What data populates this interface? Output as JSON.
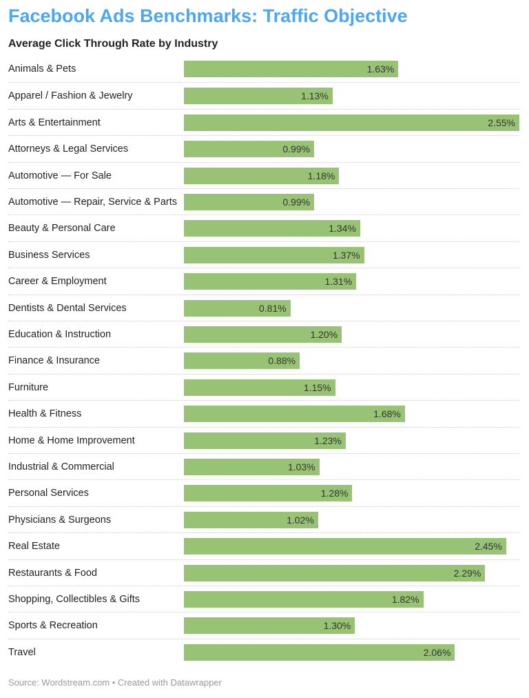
{
  "chart_data": {
    "type": "bar",
    "orientation": "horizontal",
    "title": "Facebook Ads Benchmarks: Traffic Objective",
    "subtitle": "Average Click Through Rate by Industry",
    "categories": [
      "Animals & Pets",
      "Apparel / Fashion & Jewelry",
      "Arts & Entertainment",
      "Attorneys & Legal Services",
      "Automotive — For Sale",
      "Automotive — Repair, Service & Parts",
      "Beauty & Personal Care",
      "Business Services",
      "Career & Employment",
      "Dentists & Dental Services",
      "Education & Instruction",
      "Finance & Insurance",
      "Furniture",
      "Health & Fitness",
      "Home & Home Improvement",
      "Industrial & Commercial",
      "Personal Services",
      "Physicians & Surgeons",
      "Real Estate",
      "Restaurants & Food",
      "Shopping, Collectibles & Gifts",
      "Sports & Recreation",
      "Travel"
    ],
    "values": [
      1.63,
      1.13,
      2.55,
      0.99,
      1.18,
      0.99,
      1.34,
      1.37,
      1.31,
      0.81,
      1.2,
      0.88,
      1.15,
      1.68,
      1.23,
      1.03,
      1.28,
      1.02,
      2.45,
      2.29,
      1.82,
      1.3,
      2.06
    ],
    "value_labels": [
      "1.63%",
      "1.13%",
      "2.55%",
      "0.99%",
      "1.18%",
      "0.99%",
      "1.34%",
      "1.37%",
      "1.31%",
      "0.81%",
      "1.20%",
      "0.88%",
      "1.15%",
      "1.68%",
      "1.23%",
      "1.03%",
      "1.28%",
      "1.02%",
      "2.45%",
      "2.29%",
      "1.82%",
      "1.30%",
      "2.06%"
    ],
    "xlim": [
      0,
      2.55
    ],
    "grid": false,
    "bar_color": "#98c374",
    "title_color": "#4da6f0",
    "source": "Source: Wordstream.com • Created with Datawrapper"
  }
}
